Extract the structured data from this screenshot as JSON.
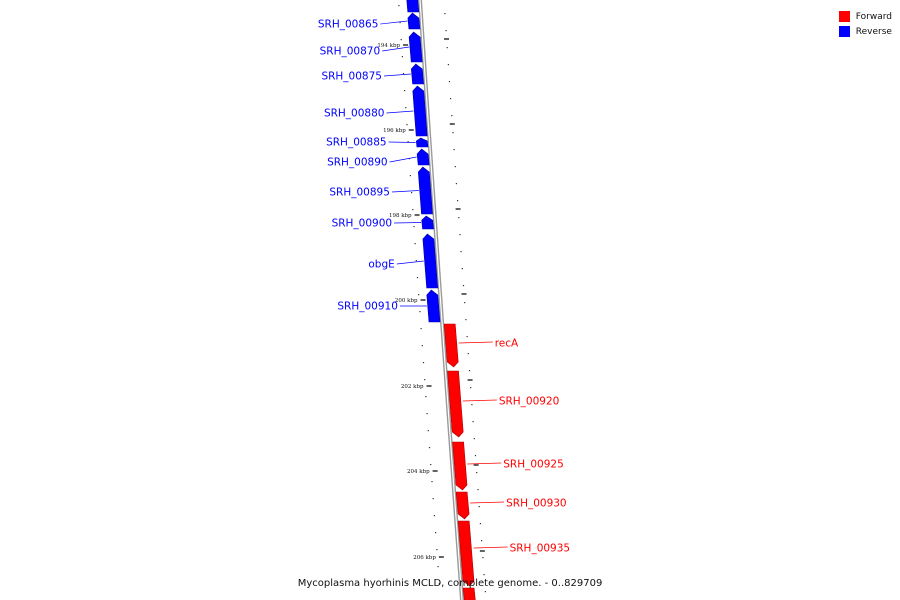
{
  "colors": {
    "forward": "#ff0000",
    "reverse": "#0000ff",
    "backbone": "#888888"
  },
  "legend": [
    {
      "label": "Forward",
      "color": "#ff0000"
    },
    {
      "label": "Reverse",
      "color": "#0000ff"
    }
  ],
  "caption": "Mycoplasma hyorhinis MCLD, complete genome. - 0..829709",
  "ticks": [
    "194 kbp",
    "196 kbp",
    "198 kbp",
    "200 kbp",
    "202 kbp",
    "204 kbp",
    "206 kbp"
  ],
  "genes": [
    {
      "label": "",
      "strand": "reverse"
    },
    {
      "label": "SRH_00865",
      "strand": "reverse"
    },
    {
      "label": "SRH_00870",
      "strand": "reverse"
    },
    {
      "label": "SRH_00875",
      "strand": "reverse"
    },
    {
      "label": "SRH_00880",
      "strand": "reverse"
    },
    {
      "label": "SRH_00885",
      "strand": "reverse"
    },
    {
      "label": "SRH_00890",
      "strand": "reverse"
    },
    {
      "label": "SRH_00895",
      "strand": "reverse"
    },
    {
      "label": "SRH_00900",
      "strand": "reverse"
    },
    {
      "label": "obgE",
      "strand": "reverse"
    },
    {
      "label": "SRH_00910",
      "strand": "reverse"
    },
    {
      "label": "recA",
      "strand": "forward"
    },
    {
      "label": "SRH_00920",
      "strand": "forward"
    },
    {
      "label": "SRH_00925",
      "strand": "forward"
    },
    {
      "label": "SRH_00930",
      "strand": "forward"
    },
    {
      "label": "SRH_00935",
      "strand": "forward"
    },
    {
      "label": "",
      "strand": "forward"
    }
  ]
}
